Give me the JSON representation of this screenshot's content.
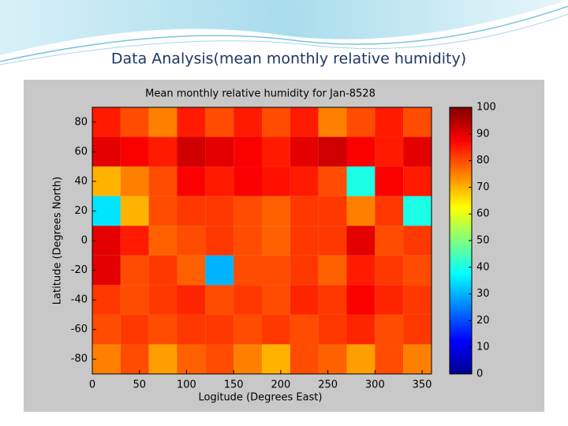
{
  "slide_title": "Data Analysis(mean monthly relative humidity)",
  "chart_data": {
    "type": "heatmap",
    "title": "Mean monthly relative humidity for Jan-8528",
    "x_label": "Logitude (Degrees East)",
    "y_label": "Latitude (Degrees North)",
    "x": [
      15,
      45,
      75,
      105,
      135,
      165,
      195,
      225,
      255,
      285,
      315,
      345
    ],
    "y": [
      80,
      60,
      40,
      20,
      0,
      -20,
      -40,
      -60,
      -80
    ],
    "values": [
      [
        85,
        80,
        75,
        85,
        80,
        85,
        80,
        85,
        75,
        80,
        85,
        80
      ],
      [
        90,
        88,
        85,
        92,
        90,
        88,
        85,
        90,
        92,
        88,
        85,
        90
      ],
      [
        70,
        75,
        80,
        88,
        85,
        88,
        86,
        85,
        80,
        40,
        88,
        85
      ],
      [
        35,
        70,
        80,
        82,
        82,
        80,
        78,
        82,
        82,
        75,
        82,
        40
      ],
      [
        90,
        85,
        78,
        80,
        82,
        80,
        78,
        82,
        82,
        90,
        80,
        82
      ],
      [
        90,
        80,
        82,
        78,
        30,
        80,
        80,
        82,
        78,
        85,
        82,
        80
      ],
      [
        82,
        80,
        82,
        84,
        80,
        82,
        80,
        84,
        82,
        88,
        84,
        82
      ],
      [
        80,
        82,
        80,
        82,
        82,
        80,
        82,
        80,
        82,
        84,
        80,
        82
      ],
      [
        75,
        80,
        72,
        78,
        80,
        75,
        70,
        80,
        78,
        72,
        80,
        75
      ]
    ],
    "xlim": [
      0,
      360
    ],
    "ylim": [
      -90,
      90
    ],
    "xticks": [
      0,
      50,
      100,
      150,
      200,
      250,
      300,
      350
    ],
    "yticks": [
      -80,
      -60,
      -40,
      -20,
      0,
      20,
      40,
      60,
      80
    ],
    "colormap": "jet",
    "clim": [
      0,
      100
    ],
    "cticks": [
      0,
      10,
      20,
      30,
      40,
      50,
      60,
      70,
      80,
      90,
      100
    ]
  }
}
